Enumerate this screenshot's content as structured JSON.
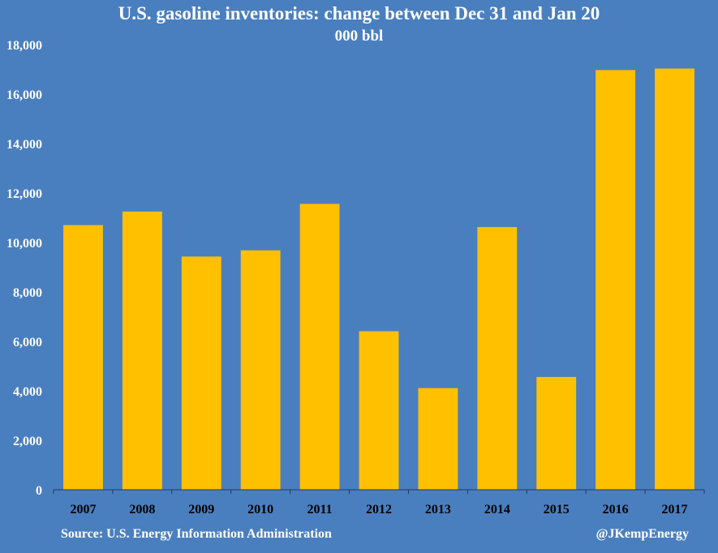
{
  "chart_data": {
    "type": "bar",
    "title": "U.S. gasoline inventories: change between Dec 31 and Jan 20",
    "subtitle": "000 bbl",
    "categories": [
      "2007",
      "2008",
      "2009",
      "2010",
      "2011",
      "2012",
      "2013",
      "2014",
      "2015",
      "2016",
      "2017"
    ],
    "values": [
      10700,
      11250,
      9430,
      9680,
      11560,
      6410,
      4110,
      10620,
      4560,
      16970,
      17030
    ],
    "ylim": [
      0,
      18000
    ],
    "yticks": [
      0,
      2000,
      4000,
      6000,
      8000,
      10000,
      12000,
      14000,
      16000,
      18000
    ],
    "ytick_labels": [
      "0",
      "2,000",
      "4,000",
      "6,000",
      "8,000",
      "10,000",
      "12,000",
      "14,000",
      "16,000",
      "18,000"
    ],
    "xlabel": "",
    "ylabel": "",
    "grid": false,
    "colors": {
      "background": "#4a7fbf",
      "bar": "#ffc000",
      "text": "#ffffff",
      "axis": "#1f3864"
    }
  },
  "footer": {
    "source": "Source: U.S. Energy Information Administration",
    "credit": "@JKempEnergy"
  }
}
